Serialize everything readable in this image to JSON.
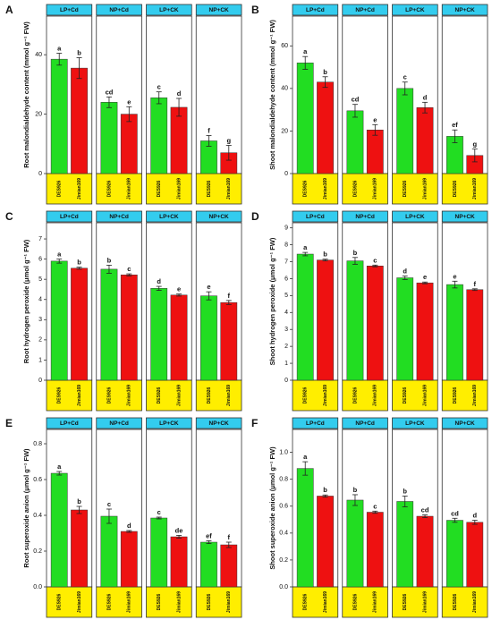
{
  "chart_data": [
    {
      "type": "bar",
      "panel": "A",
      "ylabel": "Root malondialdehyde content (mmol g⁻¹ FW)",
      "ylim": [
        0,
        53
      ],
      "yticks": [
        0,
        20,
        40
      ],
      "facets": [
        "LP+Cd",
        "NP+Cd",
        "LP+CK",
        "NP+CK"
      ],
      "categories": [
        "DES926",
        "Jimian169"
      ],
      "colors": [
        "#22dd22",
        "#ee1111"
      ],
      "values": [
        [
          38.5,
          35.5
        ],
        [
          24,
          20
        ],
        [
          25.5,
          22.3
        ],
        [
          11,
          7
        ]
      ],
      "errors": [
        [
          2,
          3.5
        ],
        [
          1.8,
          2.5
        ],
        [
          2,
          3
        ],
        [
          1.8,
          2.5
        ]
      ],
      "letters": [
        [
          "a",
          "b"
        ],
        [
          "cd",
          "e"
        ],
        [
          "c",
          "d"
        ],
        [
          "f",
          "g"
        ]
      ]
    },
    {
      "type": "bar",
      "panel": "B",
      "ylabel": "Shoot malondialdehyde content (mmol g⁻¹ FW)",
      "ylim": [
        0,
        74
      ],
      "yticks": [
        0,
        20,
        40,
        60
      ],
      "facets": [
        "LP+Cd",
        "NP+Cd",
        "LP+CK",
        "NP+CK"
      ],
      "categories": [
        "DES926",
        "Jimian169"
      ],
      "colors": [
        "#22dd22",
        "#ee1111"
      ],
      "values": [
        [
          52,
          43
        ],
        [
          29.5,
          20.5
        ],
        [
          40,
          31
        ],
        [
          17.5,
          8.5
        ]
      ],
      "errors": [
        [
          3,
          2.5
        ],
        [
          3,
          2.5
        ],
        [
          3,
          2.5
        ],
        [
          3,
          3
        ]
      ],
      "letters": [
        [
          "a",
          "b"
        ],
        [
          "cd",
          "e"
        ],
        [
          "c",
          "d"
        ],
        [
          "ef",
          "g"
        ]
      ]
    },
    {
      "type": "bar",
      "panel": "C",
      "ylabel": "Root hydrogen peroxide (μmol g⁻¹ FW)",
      "ylim": [
        0,
        7.8
      ],
      "yticks": [
        0,
        1,
        2,
        3,
        4,
        5,
        6,
        7
      ],
      "facets": [
        "LP+Cd",
        "NP+Cd",
        "LP+CK",
        "NP+CK"
      ],
      "categories": [
        "DES926",
        "Jimian169"
      ],
      "colors": [
        "#22dd22",
        "#ee1111"
      ],
      "values": [
        [
          5.9,
          5.55
        ],
        [
          5.5,
          5.22
        ],
        [
          4.55,
          4.22
        ],
        [
          4.18,
          3.85
        ]
      ],
      "errors": [
        [
          0.1,
          0.05
        ],
        [
          0.2,
          0.05
        ],
        [
          0.1,
          0.05
        ],
        [
          0.2,
          0.1
        ]
      ],
      "letters": [
        [
          "a",
          "b"
        ],
        [
          "b",
          "c"
        ],
        [
          "d",
          "e"
        ],
        [
          "e",
          "f"
        ]
      ]
    },
    {
      "type": "bar",
      "panel": "D",
      "ylabel": "Shoot hydrogen peroxide (μmol g⁻¹ FW)",
      "ylim": [
        0,
        9.3
      ],
      "yticks": [
        0,
        1,
        2,
        3,
        4,
        5,
        6,
        7,
        8,
        9
      ],
      "facets": [
        "LP+Cd",
        "NP+Cd",
        "LP+CK",
        "NP+CK"
      ],
      "categories": [
        "DES926",
        "Jimian169"
      ],
      "colors": [
        "#22dd22",
        "#ee1111"
      ],
      "values": [
        [
          7.45,
          7.1
        ],
        [
          7.05,
          6.75
        ],
        [
          6.05,
          5.75
        ],
        [
          5.65,
          5.35
        ]
      ],
      "errors": [
        [
          0.1,
          0.05
        ],
        [
          0.2,
          0.05
        ],
        [
          0.1,
          0.05
        ],
        [
          0.2,
          0.05
        ]
      ],
      "letters": [
        [
          "a",
          "b"
        ],
        [
          "b",
          "c"
        ],
        [
          "d",
          "e"
        ],
        [
          "e",
          "f"
        ]
      ]
    },
    {
      "type": "bar",
      "panel": "E",
      "ylabel": "Root superoxide anion (μmol g⁻¹ FW)",
      "ylim": [
        0,
        0.88
      ],
      "yticks": [
        {
          "value": 0,
          "label": "0.0"
        },
        0.2,
        0.4,
        0.6,
        0.8
      ],
      "facets": [
        "LP+Cd",
        "NP+Cd",
        "LP+CK",
        "NP+CK"
      ],
      "categories": [
        "DES926",
        "Jimian169"
      ],
      "colors": [
        "#22dd22",
        "#ee1111"
      ],
      "values": [
        [
          0.635,
          0.43
        ],
        [
          0.395,
          0.31
        ],
        [
          0.385,
          0.28
        ],
        [
          0.25,
          0.235
        ]
      ],
      "errors": [
        [
          0.01,
          0.02
        ],
        [
          0.04,
          0.005
        ],
        [
          0.005,
          0.008
        ],
        [
          0.008,
          0.015
        ]
      ],
      "letters": [
        [
          "a",
          "b"
        ],
        [
          "c",
          "d"
        ],
        [
          "c",
          "de"
        ],
        [
          "ef",
          "f"
        ]
      ]
    },
    {
      "type": "bar",
      "panel": "F",
      "ylabel": "Shoot superoxide anion (μmol g⁻¹ FW)",
      "ylim": [
        0,
        1.17
      ],
      "yticks": [
        {
          "value": 0,
          "label": "0.0"
        },
        0.2,
        0.4,
        0.6,
        0.8,
        {
          "value": 1,
          "label": "1.0"
        }
      ],
      "facets": [
        "LP+Cd",
        "NP+Cd",
        "LP+CK",
        "NP+CK"
      ],
      "categories": [
        "DES926",
        "Jimian169"
      ],
      "colors": [
        "#22dd22",
        "#ee1111"
      ],
      "values": [
        [
          0.88,
          0.675
        ],
        [
          0.645,
          0.555
        ],
        [
          0.635,
          0.525
        ],
        [
          0.495,
          0.48
        ]
      ],
      "errors": [
        [
          0.05,
          0.008
        ],
        [
          0.04,
          0.008
        ],
        [
          0.04,
          0.01
        ],
        [
          0.015,
          0.015
        ]
      ],
      "letters": [
        [
          "a",
          "b"
        ],
        [
          "b",
          "c"
        ],
        [
          "b",
          "cd"
        ],
        [
          "cd",
          "d"
        ]
      ]
    }
  ]
}
